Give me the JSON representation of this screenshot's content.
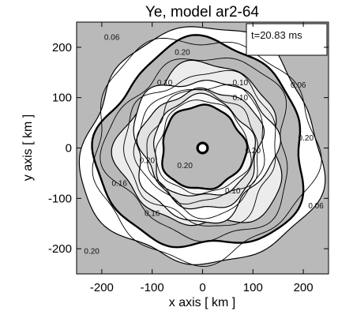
{
  "chart_data": {
    "type": "contour",
    "title": "Ye, model ar2-64",
    "xlabel": "x axis [ km ]",
    "ylabel": "y axis [ km ]",
    "xlim": [
      -250,
      250
    ],
    "ylim": [
      -250,
      250
    ],
    "xticks": [
      -200,
      -100,
      0,
      100,
      200
    ],
    "yticks": [
      -200,
      -100,
      0,
      100,
      200
    ],
    "annotation": "t=20.83 ms",
    "contour_labels": [
      "0.06",
      "0.20",
      "0.10",
      "0.10",
      "0.10",
      "0.20",
      "0.20",
      "0.16",
      "0.20",
      "0.20",
      "0.10",
      "0.20",
      "0.16",
      "0.06",
      "0.06"
    ],
    "colors": {
      "fill": "#b9b9b9",
      "light": "#f4f4f4",
      "line": "#000000"
    }
  }
}
